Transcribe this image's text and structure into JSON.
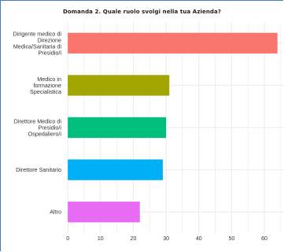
{
  "chart_data": {
    "type": "bar",
    "orientation": "horizontal",
    "title": "Domanda 2. Quale ruolo svolgi nella tua Azienda?",
    "xlabel": "",
    "ylabel": "",
    "categories": [
      [
        "Dirigente medico di",
        "Direzione",
        "Medica/Sanitaria di",
        "Presidio/i"
      ],
      [
        "Medico in",
        "formazione",
        "Specialistica"
      ],
      [
        "Direttore Medico di",
        "Presidio/i",
        "Ospedaliero/i"
      ],
      [
        "Direttore Sanitario"
      ],
      [
        "Altro"
      ]
    ],
    "values": [
      64,
      31,
      30,
      29,
      22
    ],
    "colors": [
      "#f8766d",
      "#a3a500",
      "#00bf7d",
      "#00b0f6",
      "#e76bf3"
    ],
    "xlim": [
      -1,
      66
    ],
    "xticks": [
      0,
      10,
      20,
      30,
      40,
      50,
      60
    ],
    "grid": true,
    "panel_background": "#ffffff",
    "gridline_color": "#ebebeb"
  }
}
